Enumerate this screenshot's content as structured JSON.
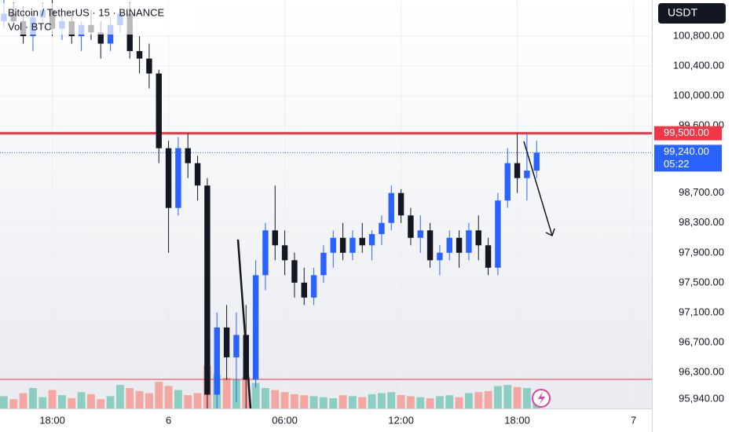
{
  "chart_data": {
    "type": "candlestick",
    "title": "Bitcoin / TetherUS · 15 · BINANCE",
    "subtitle": "Vol · BTC",
    "currency": "USDT",
    "up_color": "#2962ff",
    "down_color": "#131722",
    "volume_up_color": "#8ccfc2",
    "volume_down_color": "#f4a6a0",
    "categories": [
      null,
      null,
      null,
      null,
      null,
      null,
      null,
      null,
      null,
      null,
      null,
      null,
      null,
      null,
      null,
      null,
      null,
      null,
      null,
      null,
      null,
      null,
      null,
      null,
      null,
      null,
      null,
      null,
      null,
      null,
      null,
      null,
      null,
      null,
      null,
      null,
      null,
      null,
      null,
      null,
      null,
      null,
      null,
      null,
      null,
      null,
      null,
      null,
      null,
      null,
      null,
      null,
      null,
      null,
      null,
      null
    ],
    "open": [
      101000,
      101100,
      101000,
      100800,
      101050,
      101150,
      100900,
      101000,
      100800,
      100950,
      100850,
      100700,
      100950,
      101100,
      100600,
      100500,
      100300,
      99300,
      98500,
      99300,
      99100,
      98800,
      96000,
      96900,
      96500,
      96800,
      96200,
      97600,
      98200,
      98000,
      97800,
      97500,
      97300,
      97600,
      97900,
      98100,
      97900,
      98100,
      98000,
      98150,
      98300,
      98700,
      98400,
      98100,
      98200,
      97800,
      97900,
      98100,
      97900,
      98200,
      98000,
      97700,
      98600,
      99100,
      98900,
      99000
    ],
    "high": [
      101300,
      101250,
      101200,
      101100,
      101250,
      101300,
      101100,
      101100,
      101000,
      101150,
      101000,
      101050,
      101200,
      101250,
      100800,
      100700,
      100350,
      99400,
      99450,
      99500,
      99200,
      98900,
      97100,
      97200,
      97100,
      97200,
      97800,
      98300,
      98800,
      98200,
      97900,
      97700,
      97700,
      98000,
      98200,
      98300,
      98200,
      98300,
      98200,
      98400,
      98800,
      98750,
      98500,
      98400,
      98300,
      98000,
      98200,
      98200,
      98300,
      98400,
      98100,
      98700,
      99300,
      99500,
      99500,
      99400
    ],
    "low": [
      100900,
      100950,
      100700,
      100600,
      100900,
      100800,
      100750,
      100700,
      100600,
      100750,
      100500,
      100600,
      100850,
      100500,
      100300,
      100100,
      99100,
      97900,
      98400,
      98900,
      98600,
      95700,
      95700,
      96200,
      95900,
      95800,
      96100,
      97400,
      97800,
      97600,
      97300,
      97200,
      97200,
      97500,
      97700,
      97800,
      97800,
      97900,
      97800,
      98000,
      98200,
      98300,
      98000,
      97900,
      97700,
      97600,
      97800,
      97700,
      97800,
      97800,
      97600,
      97600,
      98500,
      98700,
      98600,
      98900
    ],
    "close": [
      101100,
      101000,
      100800,
      101050,
      101150,
      100900,
      101000,
      100800,
      100950,
      100850,
      100700,
      100950,
      101100,
      100600,
      100500,
      100300,
      99300,
      98500,
      99300,
      99100,
      98800,
      96000,
      96900,
      96500,
      96800,
      96200,
      97600,
      98200,
      98000,
      97800,
      97500,
      97300,
      97600,
      97900,
      98100,
      97900,
      98100,
      98000,
      98150,
      98300,
      98700,
      98400,
      98100,
      98200,
      97800,
      97900,
      98100,
      97900,
      98200,
      98000,
      97700,
      98600,
      99100,
      98900,
      99000,
      99240
    ],
    "volume": [
      120,
      90,
      150,
      200,
      110,
      180,
      130,
      100,
      160,
      140,
      90,
      120,
      230,
      200,
      170,
      150,
      260,
      220,
      180,
      130,
      150,
      420,
      330,
      300,
      280,
      310,
      250,
      200,
      180,
      160,
      140,
      130,
      120,
      110,
      100,
      130,
      120,
      110,
      140,
      150,
      160,
      130,
      120,
      110,
      100,
      120,
      130,
      110,
      150,
      160,
      170,
      220,
      230,
      210,
      200,
      120
    ],
    "volume_lim": [
      0,
      1000
    ],
    "xlim": [
      -0.4,
      66.9
    ],
    "xticks": [
      {
        "value": 5,
        "label": "18:00"
      },
      {
        "value": 17,
        "label": "6"
      },
      {
        "value": 29,
        "label": "06:00"
      },
      {
        "value": 41,
        "label": "12:00"
      },
      {
        "value": 53,
        "label": "18:00"
      },
      {
        "value": 65,
        "label": "7"
      }
    ],
    "ylim": [
      95816,
      101284
    ],
    "yticks": [
      {
        "value": 100800,
        "label": "100,800.00"
      },
      {
        "value": 100400,
        "label": "100,400.00"
      },
      {
        "value": 100000,
        "label": "100,000.00"
      },
      {
        "value": 99600,
        "label": "99,600.00"
      },
      {
        "value": 98700,
        "label": "98,700.00"
      },
      {
        "value": 98300,
        "label": "98,300.00"
      },
      {
        "value": 97900,
        "label": "97,900.00"
      },
      {
        "value": 97500,
        "label": "97,500.00"
      },
      {
        "value": 97100,
        "label": "97,100.00"
      },
      {
        "value": 96700,
        "label": "96,700.00"
      },
      {
        "value": 96300,
        "label": "96,300.00"
      },
      {
        "value": 95940,
        "label": "95,940.00"
      }
    ],
    "grid": true,
    "levels": [
      {
        "value": 99500,
        "label": "99,500.00",
        "color": "#f23645"
      }
    ],
    "support_line": {
      "value": 96205,
      "color": "#f23645"
    },
    "current_price": {
      "value": 99240,
      "label": "99,240.00",
      "countdown": "05:22",
      "color": "#2962ff"
    }
  }
}
